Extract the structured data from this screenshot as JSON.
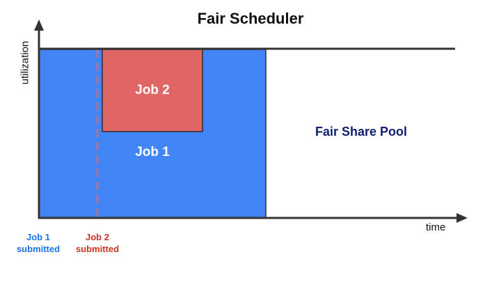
{
  "title": "Fair Scheduler",
  "axes": {
    "x_label": "time",
    "y_label": "utilization"
  },
  "blocks": {
    "job1": {
      "label": "Job 1",
      "color": "#4285f4"
    },
    "job2": {
      "label": "Job 2",
      "color": "#e06666"
    },
    "pool": {
      "label": "Fair Share Pool"
    }
  },
  "markers": {
    "job1": {
      "line1": "Job 1",
      "line2": "submitted",
      "color": "#1a73e8"
    },
    "job2": {
      "line1": "Job 2",
      "line2": "submitted",
      "color": "#cc3322"
    }
  }
}
